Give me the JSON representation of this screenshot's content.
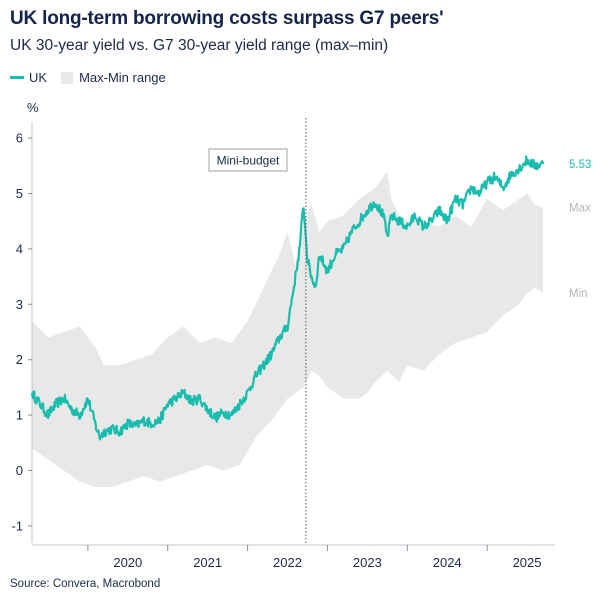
{
  "title": "UK long-term borrowing costs surpass G7 peers'",
  "subtitle": "UK 30-year yield vs. G7 30-year yield range (max–min)",
  "legend": {
    "uk": "UK",
    "range": "Max-Min range"
  },
  "source": "Source: Convera, Macrobond",
  "annotation": "Mini-budget",
  "end_labels": {
    "uk_value": "5.53",
    "max": "Max",
    "min": "Min"
  },
  "colors": {
    "uk": "#1abcae",
    "band": "#e8e8e8",
    "axis": "#1b2a4a",
    "marker": "#555555"
  },
  "chart_data": {
    "type": "area",
    "ylabel": "%",
    "ylim": [
      -1.2,
      6.2
    ],
    "yticks": [
      -1,
      0,
      1,
      2,
      3,
      4,
      5,
      6
    ],
    "xlim": [
      2019.3,
      2025.85
    ],
    "xticks": [
      "2020",
      "2021",
      "2022",
      "2023",
      "2024",
      "2025"
    ],
    "mini_budget_x": 2022.73,
    "series": [
      {
        "name": "UK",
        "x": [
          2019.3,
          2019.4,
          2019.5,
          2019.6,
          2019.7,
          2019.8,
          2019.9,
          2020.0,
          2020.1,
          2020.15,
          2020.2,
          2020.3,
          2020.4,
          2020.5,
          2020.6,
          2020.7,
          2020.8,
          2020.9,
          2021.0,
          2021.1,
          2021.2,
          2021.3,
          2021.4,
          2021.5,
          2021.6,
          2021.7,
          2021.8,
          2021.9,
          2022.0,
          2022.1,
          2022.2,
          2022.3,
          2022.4,
          2022.5,
          2022.6,
          2022.65,
          2022.7,
          2022.75,
          2022.8,
          2022.85,
          2022.9,
          2023.0,
          2023.1,
          2023.2,
          2023.3,
          2023.4,
          2023.5,
          2023.6,
          2023.7,
          2023.75,
          2023.8,
          2023.9,
          2024.0,
          2024.1,
          2024.2,
          2024.3,
          2024.4,
          2024.5,
          2024.6,
          2024.7,
          2024.8,
          2024.9,
          2025.0,
          2025.1,
          2025.2,
          2025.3,
          2025.4,
          2025.5,
          2025.6,
          2025.7
        ],
        "y": [
          1.4,
          1.2,
          1.0,
          1.2,
          1.3,
          1.1,
          1.0,
          1.3,
          0.8,
          0.6,
          0.7,
          0.75,
          0.7,
          0.85,
          0.8,
          0.9,
          0.85,
          0.9,
          1.2,
          1.3,
          1.4,
          1.25,
          1.3,
          1.1,
          0.95,
          1.05,
          1.0,
          1.2,
          1.4,
          1.7,
          1.9,
          2.1,
          2.4,
          2.6,
          3.5,
          4.0,
          4.8,
          3.8,
          3.5,
          3.3,
          3.9,
          3.6,
          3.9,
          4.0,
          4.3,
          4.5,
          4.7,
          4.85,
          4.6,
          4.2,
          4.6,
          4.5,
          4.4,
          4.6,
          4.4,
          4.5,
          4.7,
          4.5,
          4.9,
          4.8,
          5.1,
          5.0,
          5.2,
          5.3,
          5.1,
          5.35,
          5.45,
          5.6,
          5.5,
          5.53
        ]
      },
      {
        "name": "Max",
        "x": [
          2019.3,
          2019.5,
          2019.7,
          2019.9,
          2020.1,
          2020.2,
          2020.4,
          2020.6,
          2020.8,
          2021.0,
          2021.2,
          2021.4,
          2021.6,
          2021.8,
          2022.0,
          2022.2,
          2022.4,
          2022.5,
          2022.6,
          2022.7,
          2022.8,
          2022.9,
          2023.0,
          2023.2,
          2023.4,
          2023.6,
          2023.75,
          2023.8,
          2023.9,
          2024.0,
          2024.2,
          2024.4,
          2024.6,
          2024.8,
          2025.0,
          2025.2,
          2025.4,
          2025.5,
          2025.6,
          2025.7
        ],
        "y": [
          2.7,
          2.4,
          2.5,
          2.6,
          2.2,
          1.9,
          1.9,
          2.0,
          2.1,
          2.4,
          2.6,
          2.3,
          2.4,
          2.3,
          2.7,
          3.3,
          3.9,
          4.3,
          3.7,
          4.5,
          4.8,
          4.3,
          4.5,
          4.6,
          4.9,
          5.1,
          5.4,
          4.9,
          4.6,
          4.5,
          4.5,
          4.4,
          4.6,
          4.4,
          4.9,
          4.7,
          4.9,
          5.0,
          4.8,
          4.75
        ]
      },
      {
        "name": "Min",
        "x": [
          2019.3,
          2019.5,
          2019.7,
          2019.9,
          2020.1,
          2020.3,
          2020.5,
          2020.7,
          2020.9,
          2021.1,
          2021.3,
          2021.5,
          2021.7,
          2021.9,
          2022.1,
          2022.3,
          2022.5,
          2022.7,
          2022.8,
          2022.9,
          2023.0,
          2023.2,
          2023.4,
          2023.5,
          2023.6,
          2023.75,
          2023.9,
          2024.0,
          2024.2,
          2024.4,
          2024.6,
          2024.8,
          2025.0,
          2025.2,
          2025.4,
          2025.5,
          2025.6,
          2025.7
        ],
        "y": [
          0.4,
          0.2,
          0.0,
          -0.2,
          -0.3,
          -0.3,
          -0.2,
          -0.1,
          -0.2,
          -0.1,
          0.0,
          0.1,
          0.0,
          0.1,
          0.6,
          0.9,
          1.3,
          1.5,
          1.8,
          1.7,
          1.5,
          1.3,
          1.3,
          1.4,
          1.6,
          1.8,
          1.6,
          1.9,
          1.8,
          2.1,
          2.3,
          2.4,
          2.5,
          2.8,
          3.0,
          3.2,
          3.3,
          3.2
        ]
      }
    ]
  }
}
